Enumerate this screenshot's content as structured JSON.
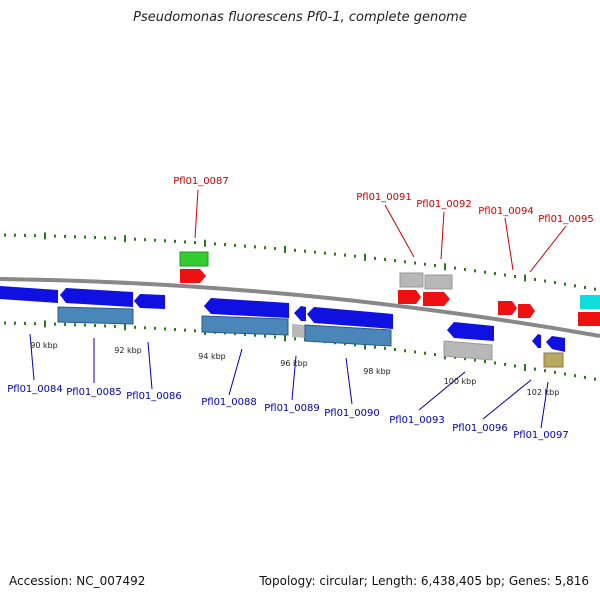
{
  "title": "Pseudomonas fluorescens Pf0-1, complete genome",
  "footer": {
    "accession": "Accession: NC_007492",
    "summary": "Topology: circular; Length: 6,438,405 bp; Genes: 5,816"
  },
  "colors": {
    "forward_label": "#cc0000",
    "reverse_label": "#0000aa",
    "backbone": "#888888",
    "tick": "#2a7a1a",
    "cds_blue": "#1010e0",
    "cds_steel": "#4a86b8",
    "cds_red": "#ee1111",
    "cds_grey": "#b8b8b8",
    "cds_green": "#33cc33",
    "cds_cyan": "#11dddd",
    "cds_olive": "#b8a860",
    "leader": "#0000aa",
    "leader_forward": "#cc0000"
  },
  "kbp_ticks": [
    "90 kbp",
    "92 kbp",
    "94 kbp",
    "96 kbp",
    "98 kbp",
    "100 kbp",
    "102 kbp"
  ],
  "forward_labels": [
    "Pfl01_0087",
    "Pfl01_0091",
    "Pfl01_0092",
    "Pfl01_0094",
    "Pfl01_0095"
  ],
  "reverse_labels": [
    "Pfl01_0084",
    "Pfl01_0085",
    "Pfl01_0086",
    "Pfl01_0088",
    "Pfl01_0089",
    "Pfl01_0090",
    "Pfl01_0093",
    "Pfl01_0096",
    "Pfl01_0097"
  ]
}
